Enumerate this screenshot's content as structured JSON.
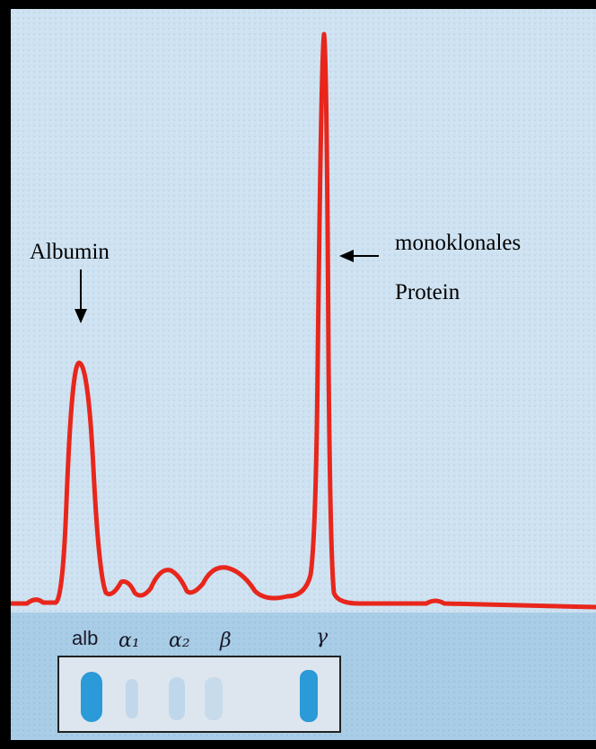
{
  "labels": {
    "albumin": "Albumin",
    "protein": [
      "monoklonales",
      "Protein"
    ]
  },
  "fractions": [
    "alb",
    "α₁",
    "α₂",
    "β",
    "γ"
  ]
}
